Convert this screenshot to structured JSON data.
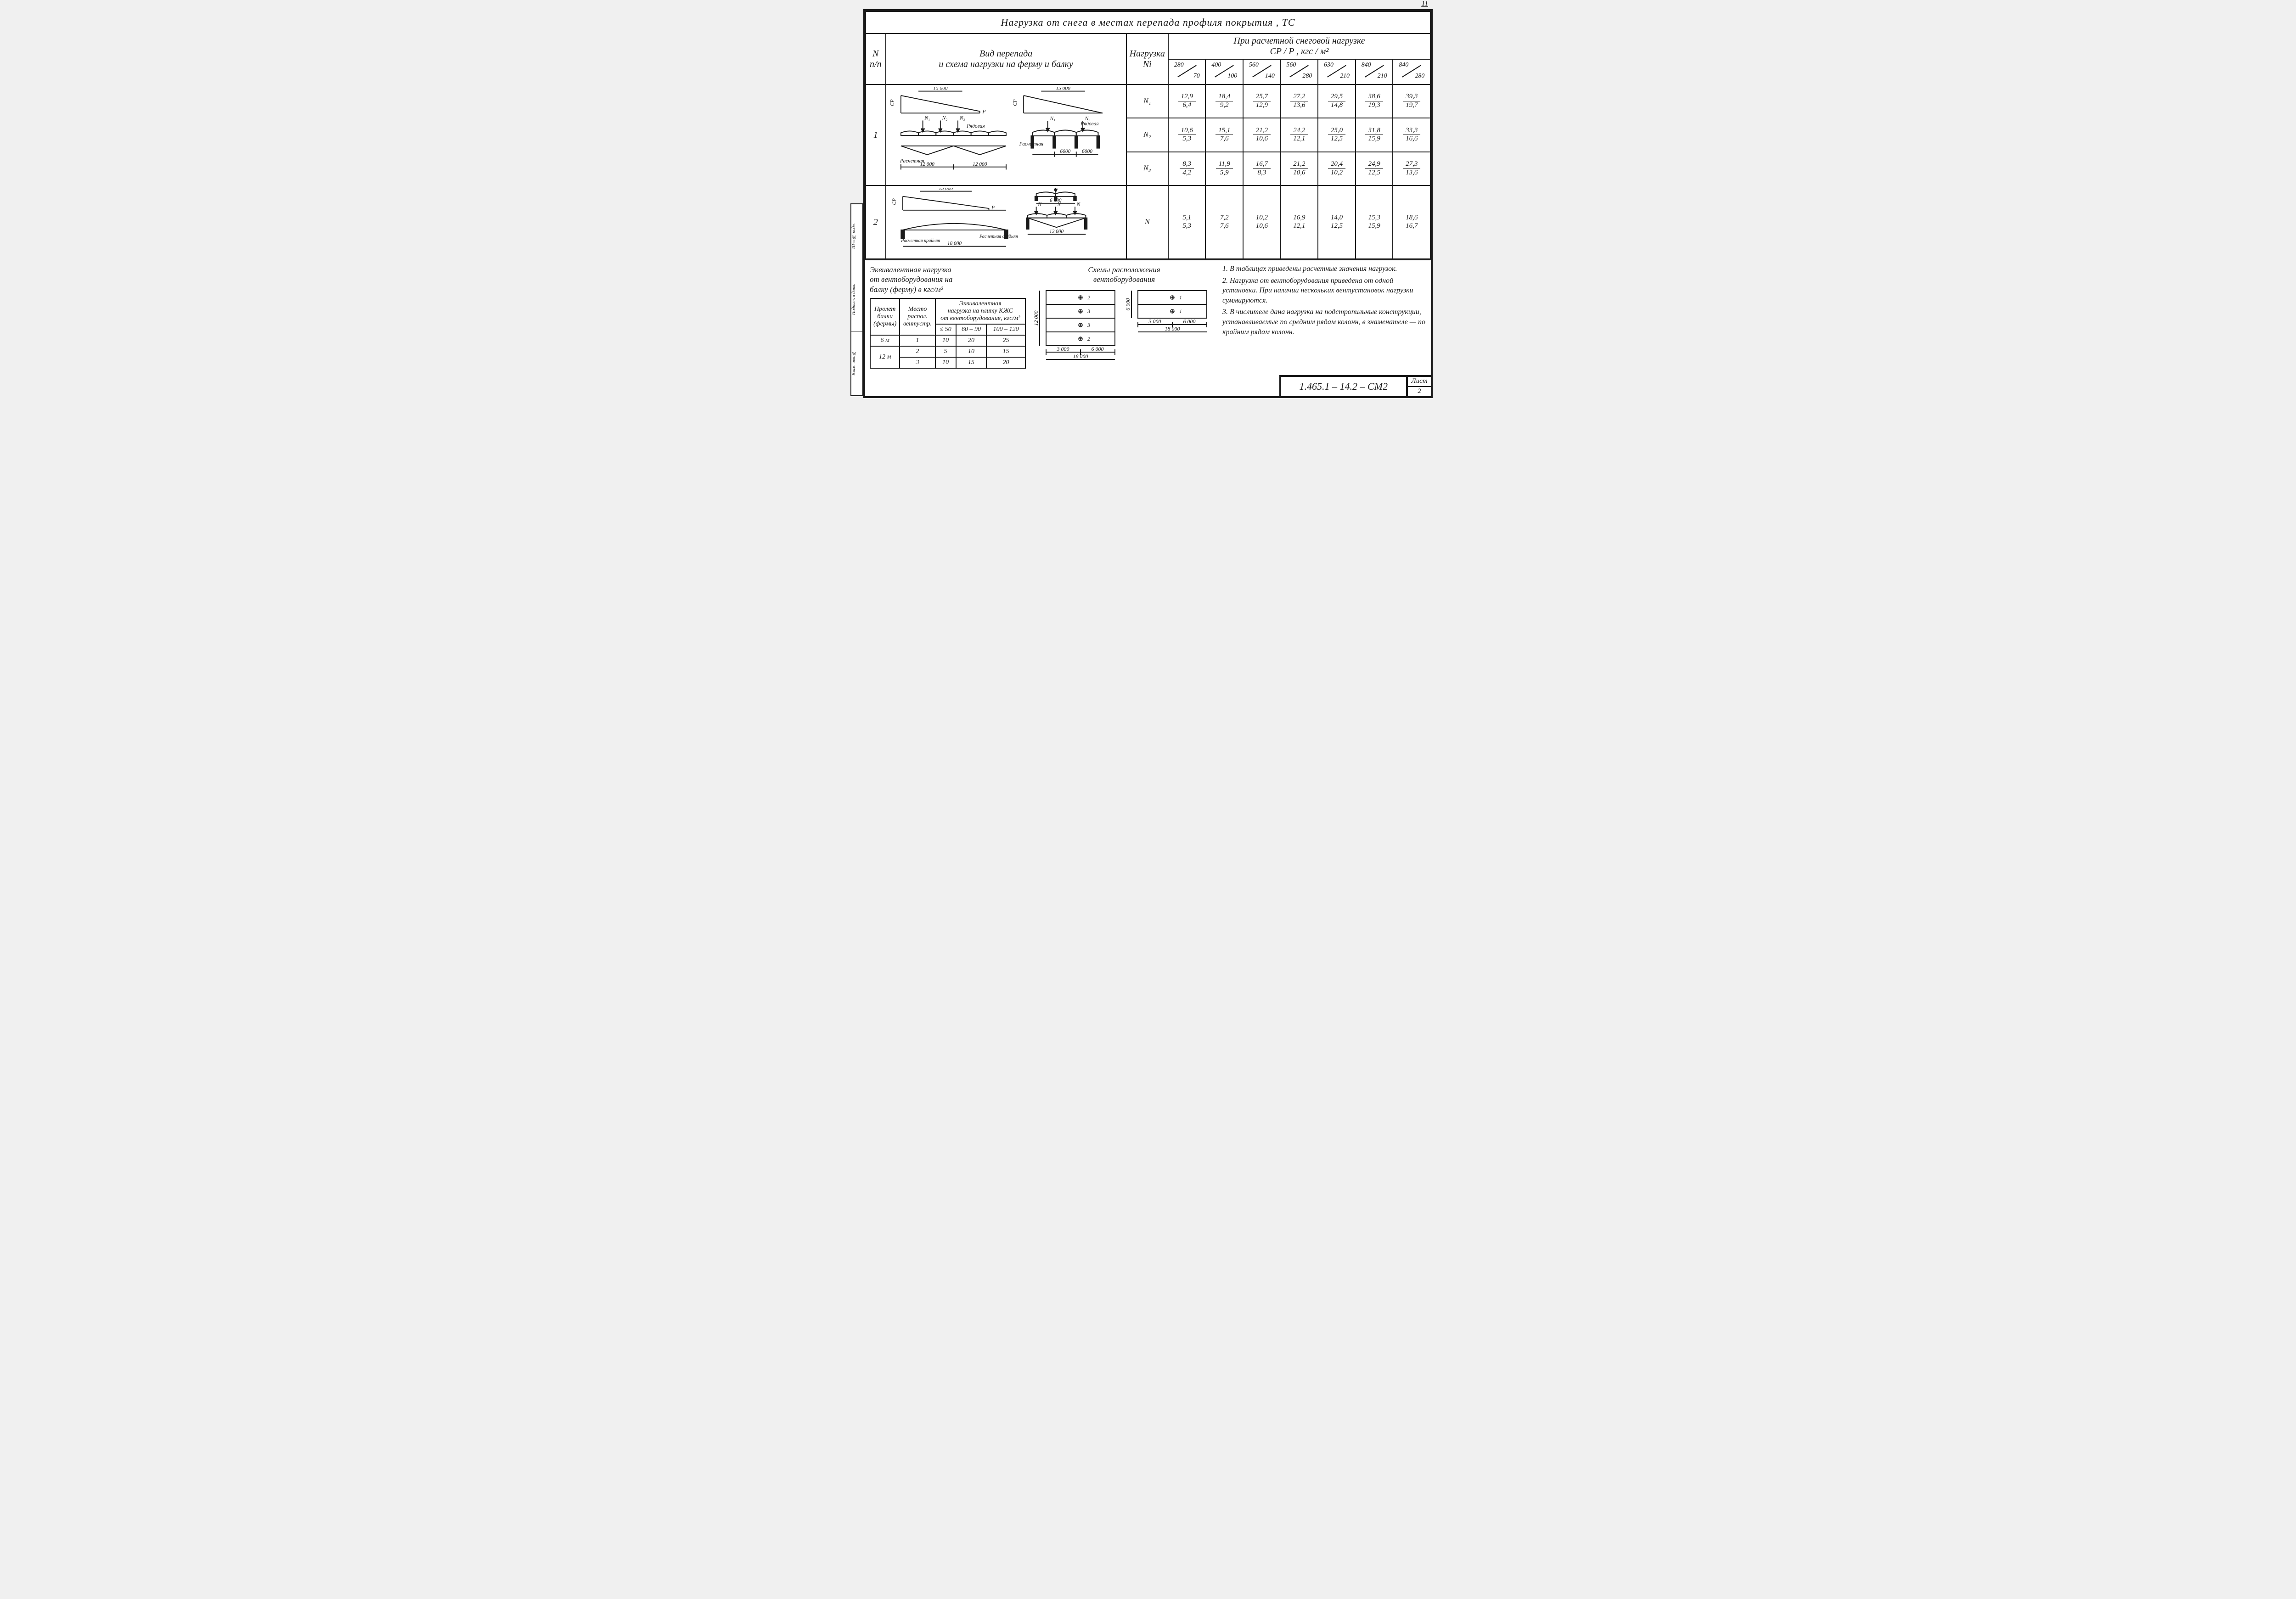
{
  "page_number_top": "11",
  "title": "Нагрузка  от  снега  в  местах  перепада    профиля  покрытия ,  ТС",
  "headers": {
    "n_pp": "N\nп/п",
    "vid": "Вид    перепада\nи  схема  нагрузки  на  ферму  и  балку",
    "nagruzka": "Нагрузка\nNi",
    "pri": "При   расчетной   снеговой   нагрузке\nCP / P ,   кгс / м²",
    "load_cols": [
      {
        "cp": "280",
        "p": "70"
      },
      {
        "cp": "400",
        "p": "100"
      },
      {
        "cp": "560",
        "p": "140"
      },
      {
        "cp": "560",
        "p": "280"
      },
      {
        "cp": "630",
        "p": "210"
      },
      {
        "cp": "840",
        "p": "210"
      },
      {
        "cp": "840",
        "p": "280"
      }
    ]
  },
  "rows_group1": {
    "id": "1",
    "diagram_labels": {
      "span_15000": "15 000",
      "span_12000_a": "12 000",
      "span_12000_b": "12 000",
      "span_6000_a": "6000",
      "span_6000_b": "6000",
      "cp": "CP",
      "p": "P",
      "ryadovaya": "Рядовая",
      "raschetnaya": "Расчетная",
      "n1": "N₁",
      "n2": "N₂",
      "n3": "N₃"
    },
    "data": [
      {
        "ni": "N₁",
        "vals": [
          {
            "n": "12,9",
            "d": "6,4"
          },
          {
            "n": "18,4",
            "d": "9,2"
          },
          {
            "n": "25,7",
            "d": "12,9"
          },
          {
            "n": "27,2",
            "d": "13,6"
          },
          {
            "n": "29,5",
            "d": "14,8"
          },
          {
            "n": "38,6",
            "d": "19,3"
          },
          {
            "n": "39,3",
            "d": "19,7"
          }
        ]
      },
      {
        "ni": "N₂",
        "vals": [
          {
            "n": "10,6",
            "d": "5,3"
          },
          {
            "n": "15,1",
            "d": "7,6"
          },
          {
            "n": "21,2",
            "d": "10,6"
          },
          {
            "n": "24,2",
            "d": "12,1"
          },
          {
            "n": "25,0",
            "d": "12,5"
          },
          {
            "n": "31,8",
            "d": "15,9"
          },
          {
            "n": "33,3",
            "d": "16,6"
          }
        ]
      },
      {
        "ni": "N₃",
        "vals": [
          {
            "n": "8,3",
            "d": "4,2"
          },
          {
            "n": "11,9",
            "d": "5,9"
          },
          {
            "n": "16,7",
            "d": "8,3"
          },
          {
            "n": "21,2",
            "d": "10,6"
          },
          {
            "n": "20,4",
            "d": "10,2"
          },
          {
            "n": "24,9",
            "d": "12,5"
          },
          {
            "n": "27,3",
            "d": "13,6"
          }
        ]
      }
    ]
  },
  "rows_group2": {
    "id": "2",
    "diagram_labels": {
      "span_15000": "15 000",
      "span_18000": "18 000",
      "span_12000": "12 000",
      "span_6000": "6 000",
      "cp": "CP",
      "p": "P",
      "rasch_kr": "Расчетная\nкрайняя",
      "rasch_sr": "Расчетная\nсредняя",
      "n": "N"
    },
    "data": [
      {
        "ni": "N",
        "vals": [
          {
            "n": "5,1",
            "d": "5,3"
          },
          {
            "n": "7,2",
            "d": "7,6"
          },
          {
            "n": "10,2",
            "d": "10,6"
          },
          {
            "n": "16,9",
            "d": "12,1"
          },
          {
            "n": "14,0",
            "d": "12,5"
          },
          {
            "n": "15,3",
            "d": "15,9"
          },
          {
            "n": "18,6",
            "d": "16,7"
          }
        ]
      }
    ]
  },
  "equip_title": "Эквивалентная  нагрузка\nот  вентоборудования  на\nбалку  (ферму)    в  кгс/м²",
  "scheme_title": "Схемы  расположения\nвентоборудования",
  "equip_table": {
    "h_span": "Пролет\nбалки\n(фермы)",
    "h_place": "Место\nраспол.\nвентустр.",
    "h_load": "Эквивалентная\nнагрузка на плиту КЖС\nот вентоборудования, кгс/м²",
    "cols": [
      "≤ 50",
      "60 – 90",
      "100 – 120"
    ],
    "rows": [
      {
        "span": "6 м",
        "place": "1",
        "v": [
          "10",
          "20",
          "25"
        ]
      },
      {
        "span": "12 м",
        "place": "2",
        "v": [
          "5",
          "10",
          "15"
        ]
      },
      {
        "span": "",
        "place": "3",
        "v": [
          "10",
          "15",
          "20"
        ]
      }
    ]
  },
  "scheme_labels": {
    "dim_12000": "12 000",
    "dim_6000": "6 000",
    "dim_3000": "3 000",
    "dim_18000": "18 000",
    "p1": "1",
    "p2": "2",
    "p3": "3"
  },
  "notes": [
    "1. В таблицах приведены расчетные значения нагрузок.",
    "2. Нагрузка от вентоборудования приведена от одной установки. При наличии нескольких вентустановок нагрузки суммируются.",
    "3. В числителе дана нагрузка на подстропильные конструкции, устанавливаемые по средним рядам колонн, в знаменателе — по крайним рядам колонн."
  ],
  "drawing_no": "1.465.1 – 14.2 – СМ2",
  "sheet_label": "Лист",
  "sheet_no": "2",
  "bind_strip": [
    "Ш-в.№ подл.",
    "Подпись и дата",
    "Взам. инв.№"
  ],
  "colors": {
    "ink": "#1a1a1a",
    "paper": "#ffffff"
  }
}
